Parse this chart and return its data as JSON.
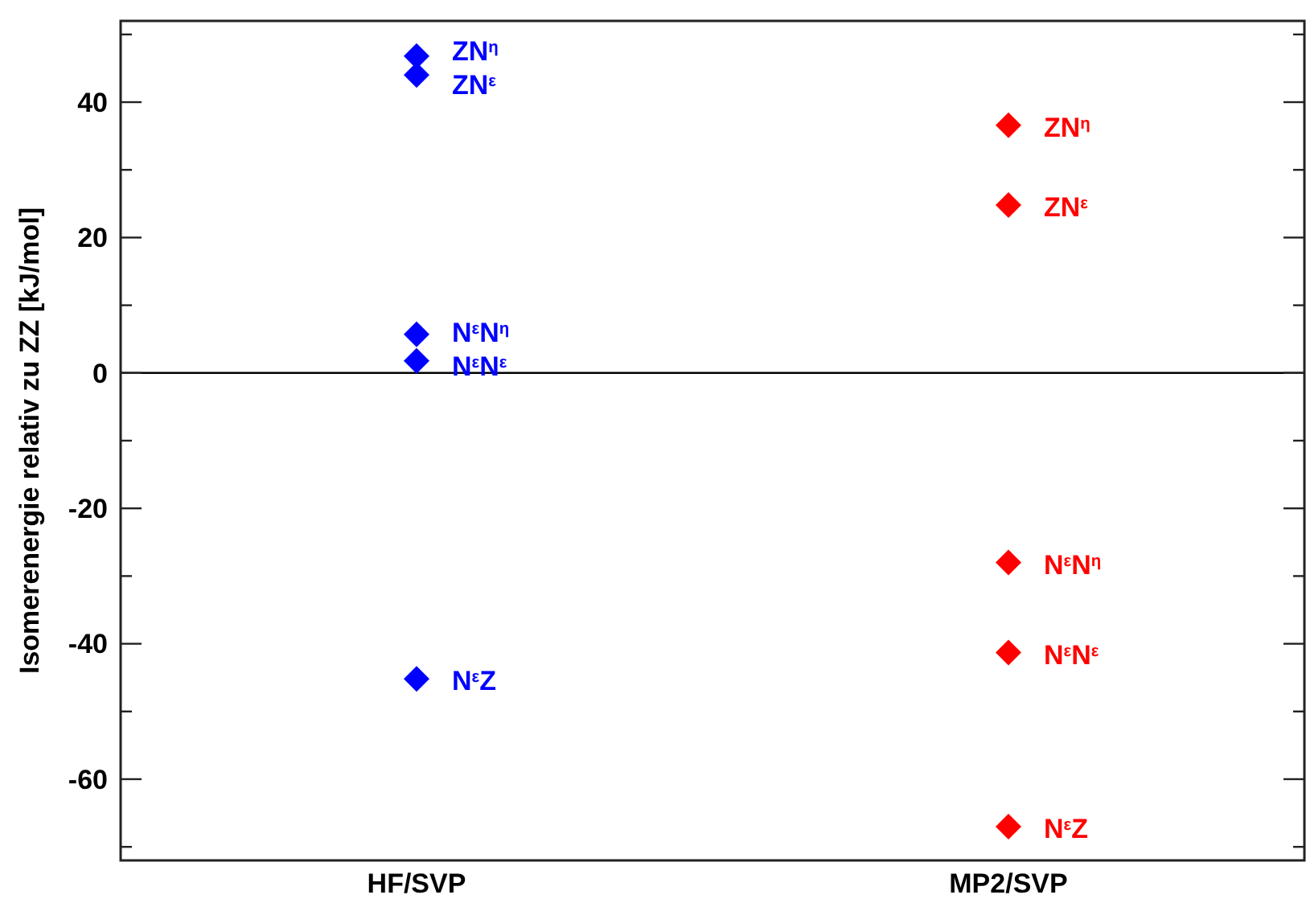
{
  "chart_data": {
    "type": "scatter",
    "ylabel": "Isomerenergie relativ zu ZZ [kJ/mol]",
    "categories": [
      "HF/SVP",
      "MP2/SVP"
    ],
    "ylim": [
      -72,
      52
    ],
    "yticks": [
      {
        "value": -70,
        "label": null
      },
      -60,
      {
        "value": -50,
        "label": null
      },
      -40,
      {
        "value": -30,
        "label": null
      },
      -20,
      {
        "value": -10,
        "label": null
      },
      0,
      {
        "value": 10,
        "label": null
      },
      20,
      {
        "value": 30,
        "label": null
      },
      40,
      {
        "value": 50,
        "label": null
      }
    ],
    "marker": "diamond",
    "series": [
      {
        "color": "#0000ff",
        "x": [
          "HF/SVP",
          "HF/SVP",
          "HF/SVP",
          "HF/SVP",
          "HF/SVP"
        ],
        "values": [
          46.8,
          44.0,
          5.7,
          1.8,
          -45.2
        ]
      },
      {
        "color": "#ff0000",
        "x": [
          "MP2/SVP",
          "MP2/SVP",
          "MP2/SVP",
          "MP2/SVP",
          "MP2/SVP"
        ],
        "values": [
          36.6,
          24.8,
          -28.0,
          -41.3,
          -67.0
        ]
      }
    ],
    "ref_lines": [
      {
        "axis": "y",
        "value": 0,
        "color": "#000000"
      }
    ],
    "annotations": [
      {
        "text": "ZN$^{η}$",
        "x": "HF/SVP",
        "y": 46.8
      },
      {
        "text": "ZN$^{ε}$",
        "x": "HF/SVP",
        "y": 44.0
      },
      {
        "text": "N$^{ε}$N$^{η}$",
        "x": "HF/SVP",
        "y": 5.7
      },
      {
        "text": "N$^{ε}$N$^{ε}$",
        "x": "HF/SVP",
        "y": 1.8
      },
      {
        "text": "N$^{ε}$Z",
        "x": "HF/SVP",
        "y": -45.2
      },
      {
        "text": "ZN$^{η}$",
        "x": "MP2/SVP",
        "y": 36.6
      },
      {
        "text": "ZN$^{ε}$",
        "x": "MP2/SVP",
        "y": 24.8
      },
      {
        "text": "N$^{ε}$N$^{η}$",
        "x": "MP2/SVP",
        "y": -28.0
      },
      {
        "text": "N$^{ε}$N$^{ε}$",
        "x": "MP2/SVP",
        "y": -41.3
      },
      {
        "text": "N$^{ε}$Z",
        "x": "MP2/SVP",
        "y": -67.0
      }
    ]
  }
}
